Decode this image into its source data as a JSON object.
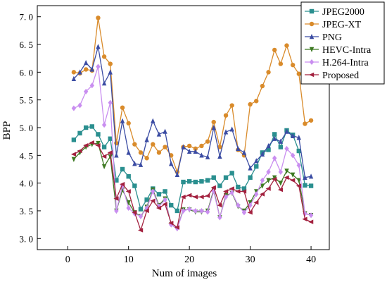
{
  "chart_data": {
    "type": "line",
    "title": "",
    "xlabel": "Num of images",
    "ylabel": "BPP",
    "xlim": [
      -5,
      43
    ],
    "ylim": [
      2.8,
      7.2
    ],
    "xticks": [
      0,
      10,
      20,
      30,
      40
    ],
    "xtick_labels": [
      "0",
      "10",
      "20",
      "30",
      "40"
    ],
    "yticks": [
      3.0,
      3.5,
      4.0,
      4.5,
      5.0,
      5.5,
      6.0,
      6.5,
      7.0
    ],
    "ytick_labels": [
      "3. 0",
      "3. 5",
      "4. 0",
      "4. 5",
      "5. 0",
      "5. 5",
      "6. 0",
      "6. 5",
      "7. 0"
    ],
    "grid": false,
    "legend_position": "top-right",
    "x": [
      1,
      2,
      3,
      4,
      5,
      6,
      7,
      8,
      9,
      10,
      11,
      12,
      13,
      14,
      15,
      16,
      17,
      18,
      19,
      20,
      21,
      22,
      23,
      24,
      25,
      26,
      27,
      28,
      29,
      30,
      31,
      32,
      33,
      34,
      35,
      36,
      37,
      38,
      39,
      40
    ],
    "series": [
      {
        "name": "JPEG2000",
        "color": "#2a8f8f",
        "marker": "square",
        "values": [
          4.78,
          4.9,
          5.0,
          5.02,
          4.88,
          4.65,
          4.8,
          4.05,
          4.25,
          4.12,
          3.95,
          3.53,
          3.7,
          3.9,
          3.8,
          3.85,
          3.6,
          3.5,
          4.02,
          4.03,
          4.02,
          4.03,
          4.05,
          4.1,
          3.95,
          4.1,
          4.18,
          3.93,
          3.9,
          4.1,
          4.3,
          4.55,
          4.6,
          4.88,
          4.65,
          4.95,
          4.87,
          4.58,
          3.96,
          3.95
        ]
      },
      {
        "name": "JPEG-XT",
        "color": "#d98b2b",
        "marker": "circle",
        "values": [
          6.0,
          5.98,
          6.05,
          6.03,
          6.98,
          6.28,
          6.15,
          4.72,
          5.36,
          5.08,
          4.7,
          4.55,
          4.45,
          4.7,
          4.55,
          4.65,
          4.5,
          4.2,
          4.65,
          4.67,
          4.62,
          4.67,
          4.75,
          5.1,
          4.65,
          5.22,
          5.4,
          4.6,
          4.5,
          5.42,
          5.48,
          5.75,
          6.0,
          6.4,
          6.15,
          6.48,
          6.13,
          5.97,
          5.07,
          5.13
        ]
      },
      {
        "name": "PNG",
        "color": "#3b4ca3",
        "marker": "triangle-up",
        "values": [
          5.88,
          6.0,
          6.17,
          6.05,
          6.46,
          5.8,
          6.0,
          4.5,
          5.12,
          4.55,
          4.35,
          4.33,
          4.78,
          5.12,
          4.88,
          4.93,
          4.35,
          4.15,
          4.65,
          4.57,
          4.57,
          4.5,
          4.47,
          5.0,
          4.48,
          4.92,
          4.97,
          4.62,
          4.55,
          4.27,
          4.4,
          4.52,
          4.67,
          4.8,
          4.75,
          4.93,
          4.85,
          4.82,
          4.1,
          4.12
        ]
      },
      {
        "name": "HEVC-Intra",
        "color": "#3e7a23",
        "marker": "triangle-down",
        "values": [
          4.43,
          4.55,
          4.65,
          4.7,
          4.72,
          4.3,
          4.48,
          3.5,
          3.88,
          3.65,
          3.47,
          3.4,
          3.57,
          3.88,
          3.6,
          3.72,
          3.25,
          3.18,
          3.52,
          3.52,
          3.48,
          3.48,
          3.5,
          3.88,
          3.38,
          3.78,
          3.82,
          3.58,
          3.5,
          3.65,
          3.85,
          3.95,
          4.05,
          4.1,
          4.0,
          4.22,
          4.15,
          4.05,
          3.45,
          3.42
        ]
      },
      {
        "name": "H.264-Intra",
        "color": "#c98ef0",
        "marker": "diamond",
        "values": [
          5.35,
          5.4,
          5.65,
          5.76,
          6.1,
          5.05,
          5.45,
          3.5,
          3.95,
          3.55,
          3.45,
          3.4,
          3.55,
          3.85,
          3.58,
          3.7,
          3.25,
          3.18,
          3.5,
          3.53,
          3.5,
          3.5,
          3.48,
          3.85,
          3.38,
          3.75,
          3.83,
          3.6,
          3.47,
          3.6,
          3.8,
          4.05,
          4.2,
          4.45,
          4.2,
          4.62,
          4.5,
          4.32,
          3.45,
          3.42
        ]
      },
      {
        "name": "Proposed",
        "color": "#a3213f",
        "marker": "triangle-left",
        "values": [
          4.52,
          4.58,
          4.68,
          4.73,
          4.68,
          4.48,
          4.55,
          3.72,
          3.98,
          3.85,
          3.47,
          3.15,
          3.5,
          3.68,
          3.55,
          3.62,
          3.28,
          3.2,
          3.75,
          3.78,
          3.75,
          3.75,
          3.77,
          3.92,
          3.6,
          3.85,
          3.9,
          3.85,
          3.85,
          3.47,
          3.65,
          3.8,
          3.9,
          4.07,
          3.88,
          4.1,
          4.05,
          3.95,
          3.35,
          3.3
        ]
      }
    ]
  }
}
